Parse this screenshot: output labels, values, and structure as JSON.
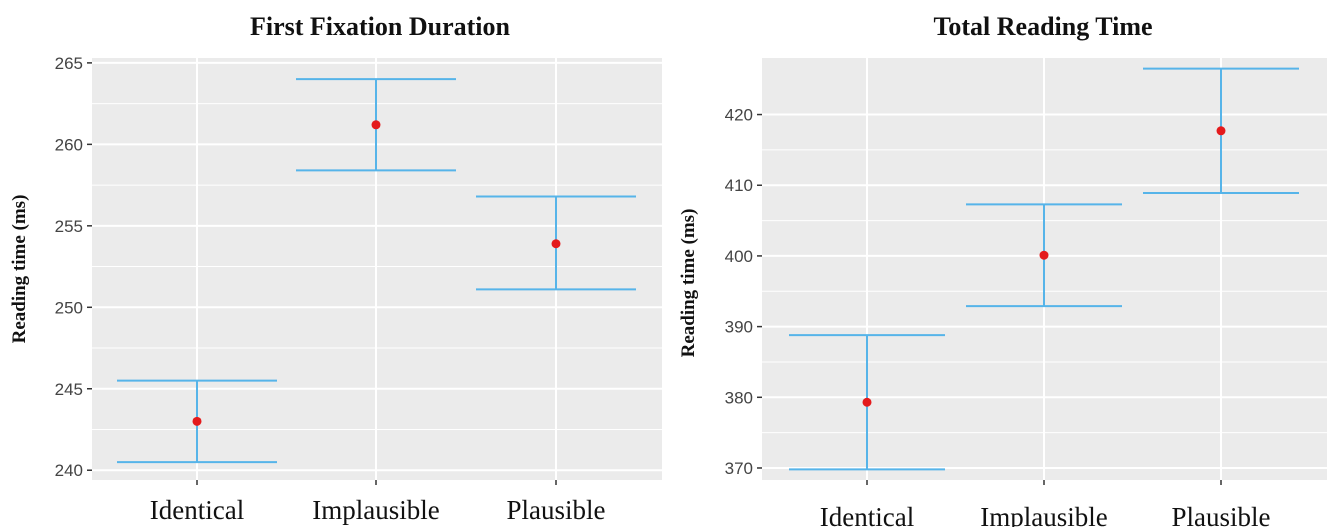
{
  "chart_data": [
    {
      "type": "errorbar",
      "title": "First Fixation Duration",
      "xlabel": "",
      "ylabel": "Reading time (ms)",
      "categories": [
        "Identical",
        "Implausible",
        "Plausible"
      ],
      "values": [
        243.0,
        261.2,
        253.9
      ],
      "error_low": [
        240.5,
        258.4,
        251.1
      ],
      "error_high": [
        245.5,
        264.0,
        256.8
      ],
      "yticks": [
        240,
        245,
        250,
        255,
        260,
        265
      ],
      "ylim": [
        239.4,
        265.3
      ],
      "grid": true,
      "colors": {
        "point": "#e41a1c",
        "errorbar": "#56b4e9",
        "panel": "#ebebeb",
        "grid": "#ffffff"
      }
    },
    {
      "type": "errorbar",
      "title": "Total Reading Time",
      "xlabel": "",
      "ylabel": "Reading time (ms)",
      "categories": [
        "Identical",
        "Implausible",
        "Plausible"
      ],
      "values": [
        379.3,
        400.1,
        417.7
      ],
      "error_low": [
        369.8,
        392.9,
        408.9
      ],
      "error_high": [
        388.8,
        407.3,
        426.5
      ],
      "yticks": [
        370,
        380,
        390,
        400,
        410,
        420
      ],
      "ylim": [
        368.3,
        428.0
      ],
      "grid": true,
      "colors": {
        "point": "#e41a1c",
        "errorbar": "#56b4e9",
        "panel": "#ebebeb",
        "grid": "#ffffff"
      }
    }
  ]
}
